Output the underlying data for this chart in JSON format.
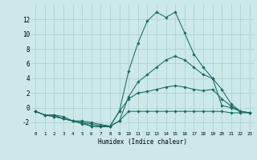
{
  "xlabel": "Humidex (Indice chaleur)",
  "bg_color": "#cce8e8",
  "grid_color": "#aacfcf",
  "line_color": "#1a6b63",
  "xlim": [
    -0.5,
    23.5
  ],
  "ylim": [
    -3.2,
    14.0
  ],
  "yticks": [
    -2,
    0,
    2,
    4,
    6,
    8,
    10,
    12
  ],
  "xtick_labels": [
    "0",
    "1",
    "2",
    "3",
    "4",
    "5",
    "6",
    "7",
    "8",
    "9",
    "10",
    "11",
    "12",
    "13",
    "14",
    "15",
    "16",
    "17",
    "18",
    "19",
    "20",
    "21",
    "22",
    "23"
  ],
  "series": [
    {
      "x": [
        0,
        1,
        2,
        3,
        4,
        5,
        6,
        7,
        8,
        9,
        10,
        11,
        12,
        13,
        14,
        15,
        16,
        17,
        18,
        19,
        20,
        21,
        22,
        23
      ],
      "y": [
        -0.5,
        -1.0,
        -1.0,
        -1.5,
        -1.8,
        -2.2,
        -2.5,
        -2.6,
        -2.6,
        -1.8,
        -0.5,
        -0.5,
        -0.5,
        -0.5,
        -0.5,
        -0.5,
        -0.5,
        -0.5,
        -0.5,
        -0.5,
        -0.5,
        -0.7,
        -0.7,
        -0.7
      ]
    },
    {
      "x": [
        0,
        1,
        2,
        3,
        4,
        5,
        6,
        7,
        8,
        9,
        10,
        11,
        12,
        13,
        14,
        15,
        16,
        17,
        18,
        19,
        20,
        21,
        22,
        23
      ],
      "y": [
        -0.5,
        -1.0,
        -1.2,
        -1.5,
        -1.8,
        -2.0,
        -2.2,
        -2.5,
        -2.5,
        -0.5,
        1.2,
        2.0,
        2.2,
        2.5,
        2.8,
        3.0,
        2.8,
        2.5,
        2.3,
        2.5,
        1.2,
        0.2,
        -0.5,
        -0.7
      ]
    },
    {
      "x": [
        0,
        1,
        2,
        3,
        4,
        5,
        6,
        7,
        8,
        9,
        10,
        11,
        12,
        13,
        14,
        15,
        16,
        17,
        18,
        19,
        20,
        21,
        22,
        23
      ],
      "y": [
        -0.5,
        -1.0,
        -1.0,
        -1.2,
        -1.8,
        -1.8,
        -2.0,
        -2.3,
        -2.5,
        -1.8,
        1.5,
        3.5,
        4.5,
        5.5,
        6.5,
        7.0,
        6.5,
        5.5,
        4.5,
        4.0,
        2.5,
        0.5,
        -0.5,
        -0.7
      ]
    },
    {
      "x": [
        0,
        1,
        2,
        3,
        4,
        5,
        6,
        7,
        8,
        9,
        10,
        11,
        12,
        13,
        14,
        15,
        16,
        17,
        18,
        19,
        20,
        21,
        22,
        23
      ],
      "y": [
        -0.5,
        -1.0,
        -1.2,
        -1.5,
        -1.8,
        -2.0,
        -2.5,
        -2.6,
        -2.5,
        -0.5,
        5.0,
        8.8,
        11.8,
        13.0,
        12.3,
        13.0,
        10.2,
        7.3,
        5.5,
        4.0,
        0.3,
        0.0,
        -0.5,
        -0.7
      ]
    }
  ]
}
